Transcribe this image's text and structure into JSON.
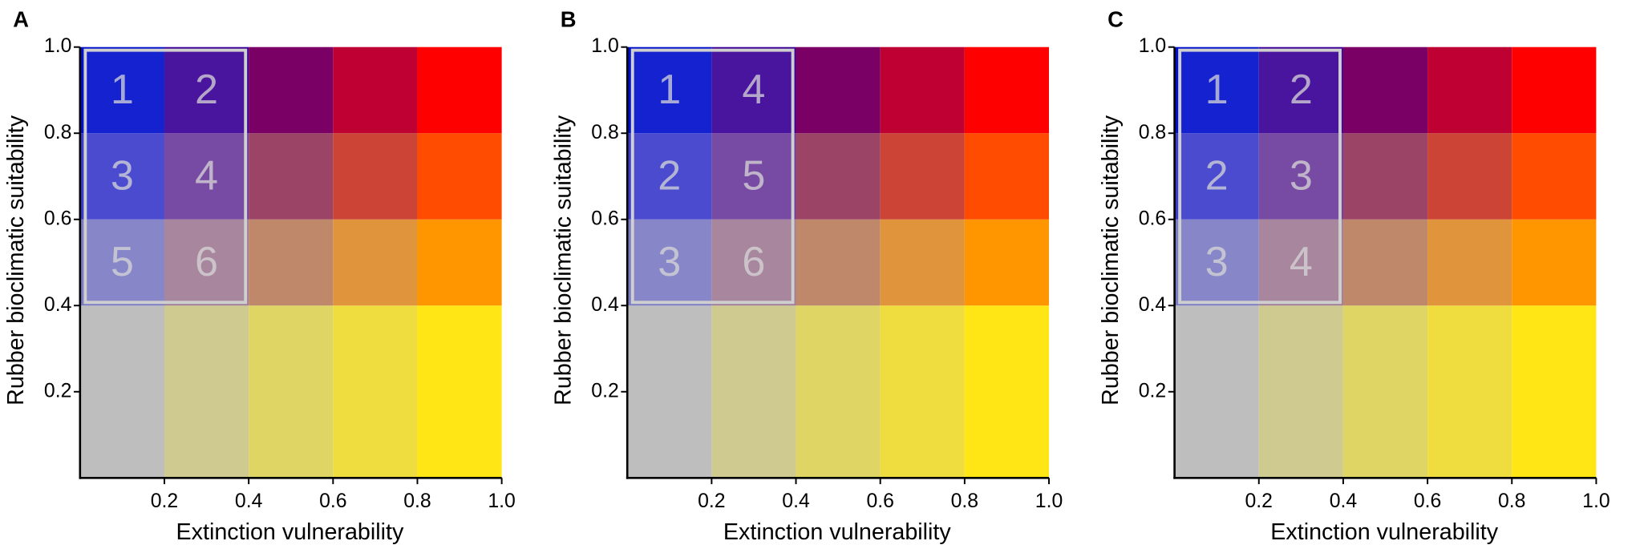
{
  "chart_data": [
    {
      "type": "heatmap",
      "panel": "A",
      "xlabel": "Extinction vulnerability",
      "ylabel": "Rubber bioclimatic suitability",
      "xlim": [
        0,
        1
      ],
      "ylim": [
        0,
        1
      ],
      "xticks": [
        0.2,
        0.4,
        0.6,
        0.8,
        {
          "value": 1,
          "label": "1.0"
        }
      ],
      "yticks": [
        0.2,
        0.4,
        0.6,
        0.8,
        {
          "value": 1,
          "label": "1.0"
        }
      ],
      "x_edges": [
        0,
        0.2,
        0.4,
        0.6,
        0.8,
        1
      ],
      "y_edges": [
        0,
        0.4,
        0.6,
        0.8,
        1
      ],
      "colors": [
        [
          "#bebebe",
          "#cfcb90",
          "#dfd565",
          "#efdd40",
          "#ffe614"
        ],
        [
          "#7c7cc4",
          "#a07c96",
          "#c0886a",
          "#e0943c",
          "#ff9600"
        ],
        [
          "#3c3ccc",
          "#6c3c9c",
          "#9c4466",
          "#cc4436",
          "#ff4c00"
        ],
        [
          "#0010cc",
          "#3a0096",
          "#7a0066",
          "#be0032",
          "#ff0000"
        ]
      ],
      "highlight": {
        "x": [
          0,
          0.4
        ],
        "y": [
          0.4,
          1
        ]
      },
      "cell_labels": [
        {
          "text": "1",
          "x": 0.1,
          "y": 0.9
        },
        {
          "text": "2",
          "x": 0.3,
          "y": 0.9
        },
        {
          "text": "3",
          "x": 0.1,
          "y": 0.7
        },
        {
          "text": "4",
          "x": 0.3,
          "y": 0.7
        },
        {
          "text": "5",
          "x": 0.1,
          "y": 0.5
        },
        {
          "text": "6",
          "x": 0.3,
          "y": 0.5
        }
      ]
    },
    {
      "type": "heatmap",
      "panel": "B",
      "xlabel": "Extinction vulnerability",
      "ylabel": "Rubber bioclimatic suitability",
      "xlim": [
        0,
        1
      ],
      "ylim": [
        0,
        1
      ],
      "xticks": [
        0.2,
        0.4,
        0.6,
        0.8,
        {
          "value": 1,
          "label": "1.0"
        }
      ],
      "yticks": [
        0.2,
        0.4,
        0.6,
        0.8,
        {
          "value": 1,
          "label": "1.0"
        }
      ],
      "x_edges": [
        0,
        0.2,
        0.4,
        0.6,
        0.8,
        1
      ],
      "y_edges": [
        0,
        0.4,
        0.6,
        0.8,
        1
      ],
      "colors": [
        [
          "#bebebe",
          "#cfcb90",
          "#dfd565",
          "#efdd40",
          "#ffe614"
        ],
        [
          "#7c7cc4",
          "#a07c96",
          "#c0886a",
          "#e0943c",
          "#ff9600"
        ],
        [
          "#3c3ccc",
          "#6c3c9c",
          "#9c4466",
          "#cc4436",
          "#ff4c00"
        ],
        [
          "#0010cc",
          "#3a0096",
          "#7a0066",
          "#be0032",
          "#ff0000"
        ]
      ],
      "highlight": {
        "x": [
          0,
          0.4
        ],
        "y": [
          0.4,
          1
        ]
      },
      "cell_labels": [
        {
          "text": "1",
          "x": 0.1,
          "y": 0.9
        },
        {
          "text": "4",
          "x": 0.3,
          "y": 0.9
        },
        {
          "text": "2",
          "x": 0.1,
          "y": 0.7
        },
        {
          "text": "5",
          "x": 0.3,
          "y": 0.7
        },
        {
          "text": "3",
          "x": 0.1,
          "y": 0.5
        },
        {
          "text": "6",
          "x": 0.3,
          "y": 0.5
        }
      ]
    },
    {
      "type": "heatmap",
      "panel": "C",
      "xlabel": "Extinction vulnerability",
      "ylabel": "Rubber bioclimatic suitability",
      "xlim": [
        0,
        1
      ],
      "ylim": [
        0,
        1
      ],
      "xticks": [
        0.2,
        0.4,
        0.6,
        0.8,
        {
          "value": 1,
          "label": "1.0"
        }
      ],
      "yticks": [
        0.2,
        0.4,
        0.6,
        0.8,
        {
          "value": 1,
          "label": "1.0"
        }
      ],
      "x_edges": [
        0,
        0.2,
        0.4,
        0.6,
        0.8,
        1
      ],
      "y_edges": [
        0,
        0.4,
        0.6,
        0.8,
        1
      ],
      "colors": [
        [
          "#bebebe",
          "#cfcb90",
          "#dfd565",
          "#efdd40",
          "#ffe614"
        ],
        [
          "#7c7cc4",
          "#a07c96",
          "#c0886a",
          "#e0943c",
          "#ff9600"
        ],
        [
          "#3c3ccc",
          "#6c3c9c",
          "#9c4466",
          "#cc4436",
          "#ff4c00"
        ],
        [
          "#0010cc",
          "#3a0096",
          "#7a0066",
          "#be0032",
          "#ff0000"
        ]
      ],
      "highlight": {
        "x": [
          0,
          0.4
        ],
        "y": [
          0.4,
          1
        ]
      },
      "cell_labels": [
        {
          "text": "1",
          "x": 0.1,
          "y": 0.9
        },
        {
          "text": "2",
          "x": 0.3,
          "y": 0.9
        },
        {
          "text": "2",
          "x": 0.1,
          "y": 0.7
        },
        {
          "text": "3",
          "x": 0.3,
          "y": 0.7
        },
        {
          "text": "3",
          "x": 0.1,
          "y": 0.5
        },
        {
          "text": "4",
          "x": 0.3,
          "y": 0.5
        }
      ]
    }
  ]
}
